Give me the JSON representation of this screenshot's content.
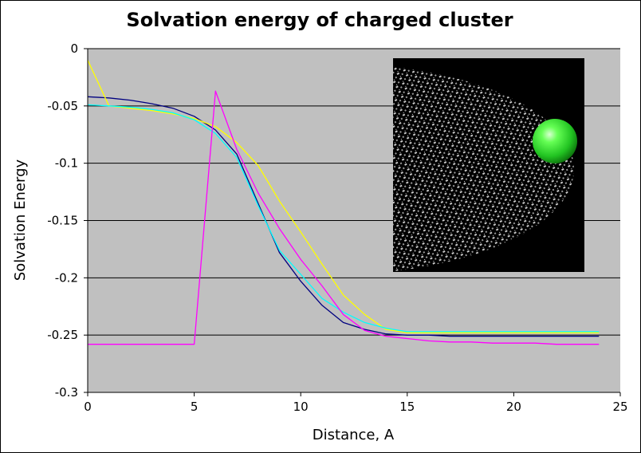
{
  "chart_data": {
    "type": "line",
    "title": "Solvation energy of charged cluster",
    "xlabel": "Distance, A",
    "ylabel": "Solvation Energy",
    "xlim": [
      0,
      25
    ],
    "ylim": [
      -0.3,
      0
    ],
    "x_ticks": [
      "0",
      "5",
      "10",
      "15",
      "20",
      "25"
    ],
    "y_ticks": [
      "0",
      "-0.05",
      "-0.1",
      "-0.15",
      "-0.2",
      "-0.25",
      "-0.3"
    ],
    "grid": "horizontal",
    "plot_background": "#c0c0c0",
    "series": [
      {
        "color": "#000080",
        "x": [
          0,
          1,
          2,
          3,
          4,
          5,
          6,
          7,
          8,
          9,
          10,
          11,
          12,
          13,
          14,
          15,
          16,
          17,
          18,
          19,
          20,
          21,
          22,
          23,
          24
        ],
        "y": [
          -0.042,
          -0.043,
          -0.045,
          -0.048,
          -0.052,
          -0.059,
          -0.071,
          -0.092,
          -0.135,
          -0.178,
          -0.203,
          -0.224,
          -0.239,
          -0.245,
          -0.249,
          -0.25,
          -0.25,
          -0.251,
          -0.251,
          -0.251,
          -0.251,
          -0.251,
          -0.251,
          -0.251,
          -0.251
        ]
      },
      {
        "color": "#ffff00",
        "x": [
          0,
          1,
          2,
          3,
          4,
          5,
          6,
          7,
          8,
          9,
          10,
          11,
          12,
          13,
          14,
          15,
          16,
          17,
          18,
          19,
          20,
          21,
          22,
          23,
          24
        ],
        "y": [
          -0.01,
          -0.05,
          -0.052,
          -0.054,
          -0.057,
          -0.061,
          -0.068,
          -0.082,
          -0.102,
          -0.133,
          -0.16,
          -0.188,
          -0.215,
          -0.232,
          -0.245,
          -0.248,
          -0.248,
          -0.248,
          -0.248,
          -0.248,
          -0.248,
          -0.248,
          -0.248,
          -0.248,
          -0.248
        ]
      },
      {
        "color": "#00ffff",
        "x": [
          0,
          1,
          2,
          3,
          4,
          5,
          6,
          7,
          8,
          9,
          10,
          11,
          12,
          13,
          14,
          15,
          16,
          17,
          18,
          19,
          20,
          21,
          22,
          23,
          24
        ],
        "y": [
          -0.049,
          -0.05,
          -0.051,
          -0.053,
          -0.056,
          -0.062,
          -0.074,
          -0.095,
          -0.137,
          -0.176,
          -0.197,
          -0.218,
          -0.23,
          -0.239,
          -0.244,
          -0.247,
          -0.247,
          -0.247,
          -0.247,
          -0.247,
          -0.247,
          -0.247,
          -0.247,
          -0.247,
          -0.247
        ]
      },
      {
        "color": "#ff00ff",
        "x": [
          0,
          1,
          2,
          3,
          4,
          5,
          6,
          7,
          8,
          9,
          10,
          11,
          12,
          13,
          14,
          15,
          16,
          17,
          18,
          19,
          20,
          21,
          22,
          23,
          24
        ],
        "y": [
          -0.258,
          -0.258,
          -0.258,
          -0.258,
          -0.258,
          -0.258,
          -0.037,
          -0.088,
          -0.126,
          -0.157,
          -0.184,
          -0.207,
          -0.232,
          -0.246,
          -0.251,
          -0.253,
          -0.255,
          -0.256,
          -0.256,
          -0.257,
          -0.257,
          -0.257,
          -0.258,
          -0.258,
          -0.258
        ]
      }
    ],
    "inset": {
      "name": "cluster-image",
      "background": "#000000",
      "dots_color": "#c8c8c8",
      "ion_color": "#33ee33"
    }
  }
}
